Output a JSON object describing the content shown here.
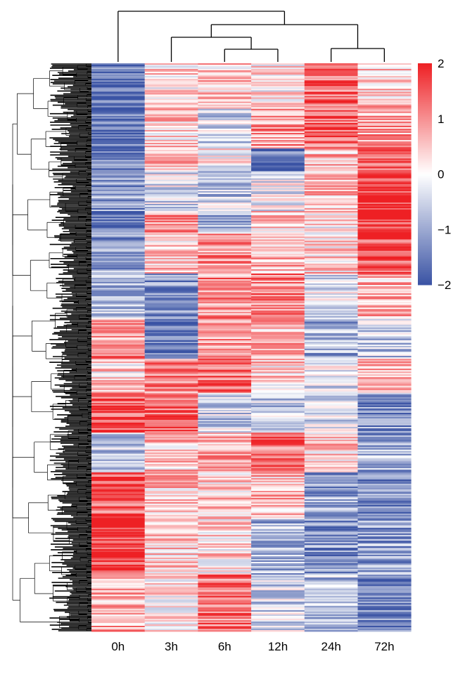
{
  "chart_data": {
    "type": "heatmap",
    "columns": [
      "0h",
      "3h",
      "6h",
      "12h",
      "24h",
      "72h"
    ],
    "value_range": [
      -2,
      2
    ],
    "colorbar": {
      "ticks": [
        2,
        1,
        0,
        -1,
        -2
      ],
      "tick_labels": [
        "2",
        "1",
        "0",
        "−1",
        "−2"
      ],
      "low_color": "#3a53a4",
      "mid_color": "#ffffff",
      "high_color": "#ee2024"
    },
    "row_dendrogram": true,
    "column_dendrogram": true,
    "column_dendrogram_merge_order": [
      [
        "6h",
        "12h"
      ],
      [
        "3h",
        "6h+12h"
      ],
      [
        "24h",
        "72h"
      ],
      [
        "3h+6h+12h",
        "24h+72h"
      ],
      [
        "0h",
        "rest"
      ]
    ],
    "row_band_profile": [
      {
        "from": 0.0,
        "to": 0.08,
        "values": [
          -1.7,
          0.3,
          0.5,
          0.2,
          1.3,
          0.5
        ]
      },
      {
        "from": 0.08,
        "to": 0.15,
        "values": [
          -1.6,
          0.4,
          -0.5,
          1.0,
          1.4,
          0.8
        ]
      },
      {
        "from": 0.15,
        "to": 0.19,
        "values": [
          -1.3,
          0.6,
          0.1,
          -1.6,
          0.7,
          1.5
        ]
      },
      {
        "from": 0.19,
        "to": 0.26,
        "values": [
          -1.2,
          -0.3,
          -0.6,
          -0.2,
          0.5,
          1.9
        ]
      },
      {
        "from": 0.26,
        "to": 0.3,
        "values": [
          -1.6,
          0.9,
          -0.9,
          0.3,
          0.2,
          1.6
        ]
      },
      {
        "from": 0.3,
        "to": 0.37,
        "values": [
          -1.1,
          0.5,
          0.9,
          0.6,
          0.4,
          1.7
        ]
      },
      {
        "from": 0.37,
        "to": 0.45,
        "values": [
          -0.8,
          -1.3,
          1.0,
          1.1,
          -0.2,
          0.7
        ]
      },
      {
        "from": 0.45,
        "to": 0.52,
        "values": [
          1.0,
          -1.8,
          0.8,
          0.7,
          -0.9,
          -0.6
        ]
      },
      {
        "from": 0.52,
        "to": 0.58,
        "values": [
          0.3,
          1.0,
          1.3,
          0.4,
          -0.3,
          0.6
        ]
      },
      {
        "from": 0.58,
        "to": 0.65,
        "values": [
          1.4,
          1.4,
          -0.5,
          -0.7,
          -0.4,
          -1.2
        ]
      },
      {
        "from": 0.65,
        "to": 0.72,
        "values": [
          -0.6,
          0.5,
          0.7,
          1.4,
          0.5,
          -0.9
        ]
      },
      {
        "from": 0.72,
        "to": 0.8,
        "values": [
          1.5,
          0.6,
          0.4,
          0.6,
          -1.1,
          -1.4
        ]
      },
      {
        "from": 0.8,
        "to": 0.9,
        "values": [
          1.8,
          0.5,
          0.3,
          -0.8,
          -1.2,
          -1.1
        ]
      },
      {
        "from": 0.9,
        "to": 1.0,
        "values": [
          0.8,
          0.3,
          1.3,
          -0.5,
          -0.7,
          -1.5
        ]
      }
    ]
  }
}
